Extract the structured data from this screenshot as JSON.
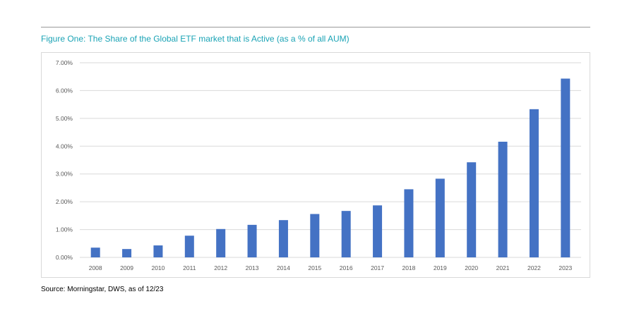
{
  "figure": {
    "title": "Figure One: The Share of the Global ETF market that is Active (as a % of all AUM)",
    "source": "Source: Morningstar, DWS, as of 12/23"
  },
  "colors": {
    "bar": "#4472c4",
    "title": "#1aa3b5",
    "grid": "#d9d9d9",
    "axis_text": "#595959"
  },
  "chart_data": {
    "type": "bar",
    "title": "Figure One: The Share of the Global ETF market that is Active (as a % of all AUM)",
    "xlabel": "",
    "ylabel": "",
    "categories": [
      "2008",
      "2009",
      "2010",
      "2011",
      "2012",
      "2013",
      "2014",
      "2015",
      "2016",
      "2017",
      "2018",
      "2019",
      "2020",
      "2021",
      "2022",
      "2023"
    ],
    "values": [
      0.35,
      0.3,
      0.43,
      0.78,
      1.02,
      1.17,
      1.34,
      1.56,
      1.67,
      1.87,
      2.45,
      2.83,
      3.42,
      4.16,
      5.33,
      6.43
    ],
    "ylim": [
      0,
      7
    ],
    "yticks": [
      0,
      1,
      2,
      3,
      4,
      5,
      6,
      7
    ],
    "ytick_labels": [
      "0.00%",
      "1.00%",
      "2.00%",
      "3.00%",
      "4.00%",
      "5.00%",
      "6.00%",
      "7.00%"
    ],
    "grid": true,
    "legend": "none"
  }
}
